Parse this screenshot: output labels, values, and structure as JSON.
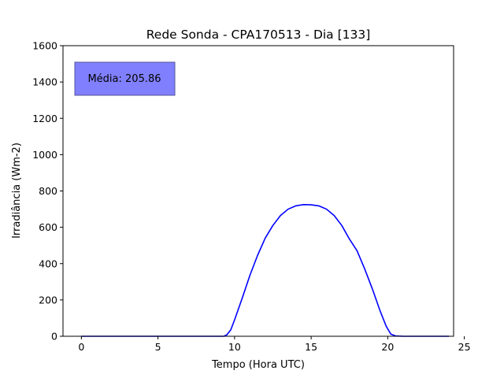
{
  "chart_data": {
    "type": "line",
    "title": "Rede Sonda - CPA170513 - Dia [133]",
    "xlabel": "Tempo (Hora UTC)",
    "ylabel": "Irradiância (Wm-2)",
    "xlim": [
      -1.2,
      24.3
    ],
    "ylim": [
      0,
      1600
    ],
    "xticks": [
      0,
      5,
      10,
      15,
      20,
      25
    ],
    "yticks": [
      0,
      200,
      400,
      600,
      800,
      1000,
      1200,
      1400,
      1600
    ],
    "grid": false,
    "annotation": {
      "text": "Média: 205.86",
      "color": "#8080ff"
    },
    "series": [
      {
        "color": "#0000ff",
        "x": [
          0,
          5,
          9.3,
          9.5,
          9.75,
          10.0,
          10.5,
          11.0,
          11.5,
          12.0,
          12.5,
          13.0,
          13.5,
          14.0,
          14.5,
          15.0,
          15.5,
          16.0,
          16.5,
          17.0,
          17.5,
          18.0,
          18.5,
          19.0,
          19.5,
          19.9,
          20.2,
          20.5,
          21.0,
          24.0
        ],
        "y": [
          0,
          0,
          0,
          8,
          35,
          90,
          210,
          335,
          445,
          540,
          610,
          665,
          700,
          718,
          725,
          724,
          718,
          700,
          665,
          610,
          535,
          470,
          370,
          260,
          140,
          55,
          12,
          2,
          0,
          0
        ]
      }
    ]
  }
}
